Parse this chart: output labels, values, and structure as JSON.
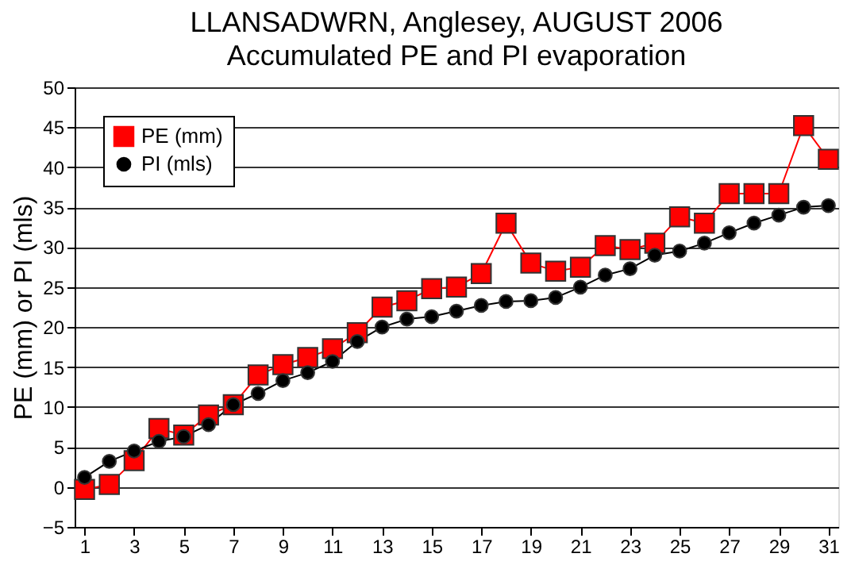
{
  "chart_data": {
    "type": "line",
    "title": "LLANSADWRN, Anglesey, AUGUST 2006",
    "subtitle": "Accumulated PE and PI evaporation",
    "ylabel": "PE (mm) or PI (mls)",
    "x": [
      1,
      2,
      3,
      4,
      5,
      6,
      7,
      8,
      9,
      10,
      11,
      12,
      13,
      14,
      15,
      16,
      17,
      18,
      19,
      20,
      21,
      22,
      23,
      24,
      25,
      26,
      27,
      28,
      29,
      30,
      31
    ],
    "xlim": [
      0.6,
      31.4
    ],
    "xticks": [
      1,
      3,
      5,
      7,
      9,
      11,
      13,
      15,
      17,
      19,
      21,
      23,
      25,
      27,
      29,
      31
    ],
    "ylim": [
      -5,
      50
    ],
    "yticks": [
      -5,
      0,
      5,
      10,
      15,
      20,
      25,
      30,
      35,
      40,
      45,
      50
    ],
    "grid": "y",
    "legend": "top left",
    "series": [
      {
        "name": "PE (mm)",
        "color": "#ff0000",
        "marker": "square",
        "values": [
          -0.3,
          0.3,
          3.3,
          7.3,
          6.5,
          9.0,
          10.3,
          14.0,
          15.3,
          16.2,
          17.3,
          19.3,
          22.5,
          23.3,
          24.8,
          25.0,
          26.7,
          33.0,
          28.0,
          27.0,
          27.5,
          30.2,
          29.7,
          30.5,
          33.8,
          33.0,
          36.7,
          36.7,
          36.7,
          45.2,
          41.0
        ]
      },
      {
        "name": "PI (mls)",
        "color": "#000000",
        "marker": "circle",
        "values": [
          1.2,
          3.2,
          4.5,
          5.7,
          6.3,
          7.8,
          10.3,
          11.7,
          13.3,
          14.3,
          15.7,
          18.2,
          20.0,
          21.0,
          21.3,
          22.0,
          22.7,
          23.2,
          23.3,
          23.7,
          25.0,
          26.5,
          27.3,
          29.0,
          29.5,
          30.5,
          31.8,
          33.0,
          34.0,
          35.0,
          35.2
        ]
      }
    ]
  }
}
